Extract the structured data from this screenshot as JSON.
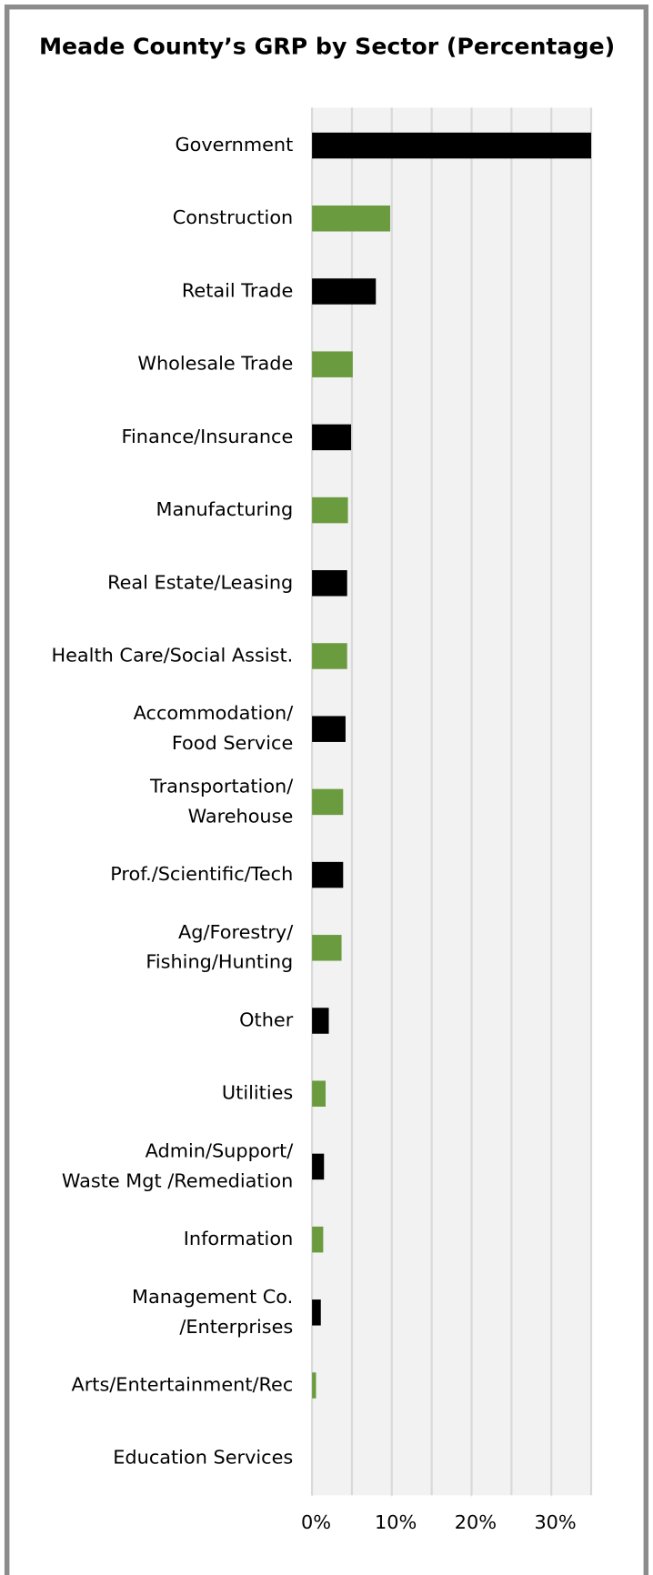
{
  "chart_data": {
    "type": "hbar",
    "title": "Meade County’s GRP by Sector (Percentage)",
    "categories": [
      "Government",
      "Construction",
      "Retail Trade",
      "Wholesale Trade",
      "Finance/Insurance",
      "Manufacturing",
      "Real Estate/Leasing",
      "Health Care/Social Assist.",
      "Accommodation/\nFood Service",
      "Transportation/\nWarehouse",
      "Prof./Scientific/Tech",
      "Ag/Forestry/\nFishing/Hunting",
      "Other",
      "Utilities",
      "Admin/Support/\nWaste Mgt /Remediation",
      "Information",
      "Management Co.\n/Enterprises",
      "Arts/Entertainment/Rec",
      "Education Services"
    ],
    "values": [
      35,
      9.8,
      8.0,
      5.1,
      4.9,
      4.5,
      4.4,
      4.4,
      4.2,
      3.9,
      3.9,
      3.7,
      2.1,
      1.7,
      1.5,
      1.4,
      1.1,
      0.5,
      0
    ],
    "colors": [
      "#000000",
      "#6a9b3f",
      "#000000",
      "#6a9b3f",
      "#000000",
      "#6a9b3f",
      "#000000",
      "#6a9b3f",
      "#000000",
      "#6a9b3f",
      "#000000",
      "#6a9b3f",
      "#000000",
      "#6a9b3f",
      "#000000",
      "#6a9b3f",
      "#000000",
      "#6a9b3f",
      "#000000"
    ],
    "xlim": [
      0,
      35
    ],
    "xticks": [
      {
        "value": 0,
        "label": "0%"
      },
      {
        "value": 10,
        "label": "10%"
      },
      {
        "value": 20,
        "label": "20%"
      },
      {
        "value": 30,
        "label": "30%"
      }
    ],
    "xgrid": [
      0,
      5,
      10,
      15,
      20,
      25,
      30,
      35
    ]
  }
}
